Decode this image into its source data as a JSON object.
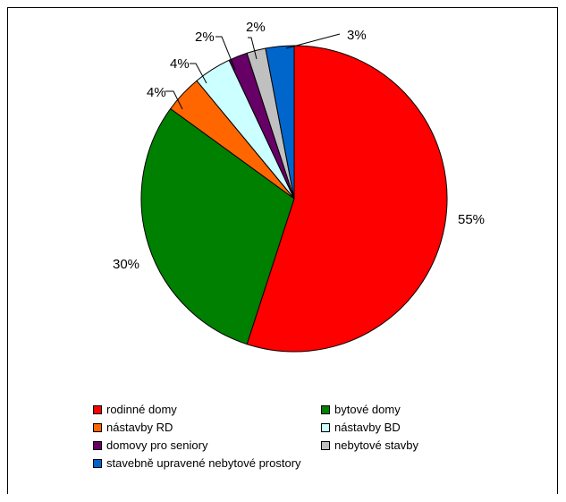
{
  "chart_data": {
    "type": "pie",
    "title": "",
    "categories": [
      "rodinné domy",
      "bytové domy",
      "nástavby RD",
      "nástavby BD",
      "domovy pro seniory",
      "nebytové stavby",
      "stavebně upravené nebytové prostory"
    ],
    "values": [
      55,
      30,
      4,
      4,
      2,
      2,
      3
    ],
    "value_labels": [
      "55%",
      "30%",
      "4%",
      "4%",
      "2%",
      "2%",
      "3%"
    ],
    "colors": [
      "#ff0000",
      "#008000",
      "#ff6600",
      "#ccffff",
      "#660066",
      "#c0c0c0",
      "#0066cc"
    ],
    "legend_position": "bottom",
    "grid": false
  }
}
